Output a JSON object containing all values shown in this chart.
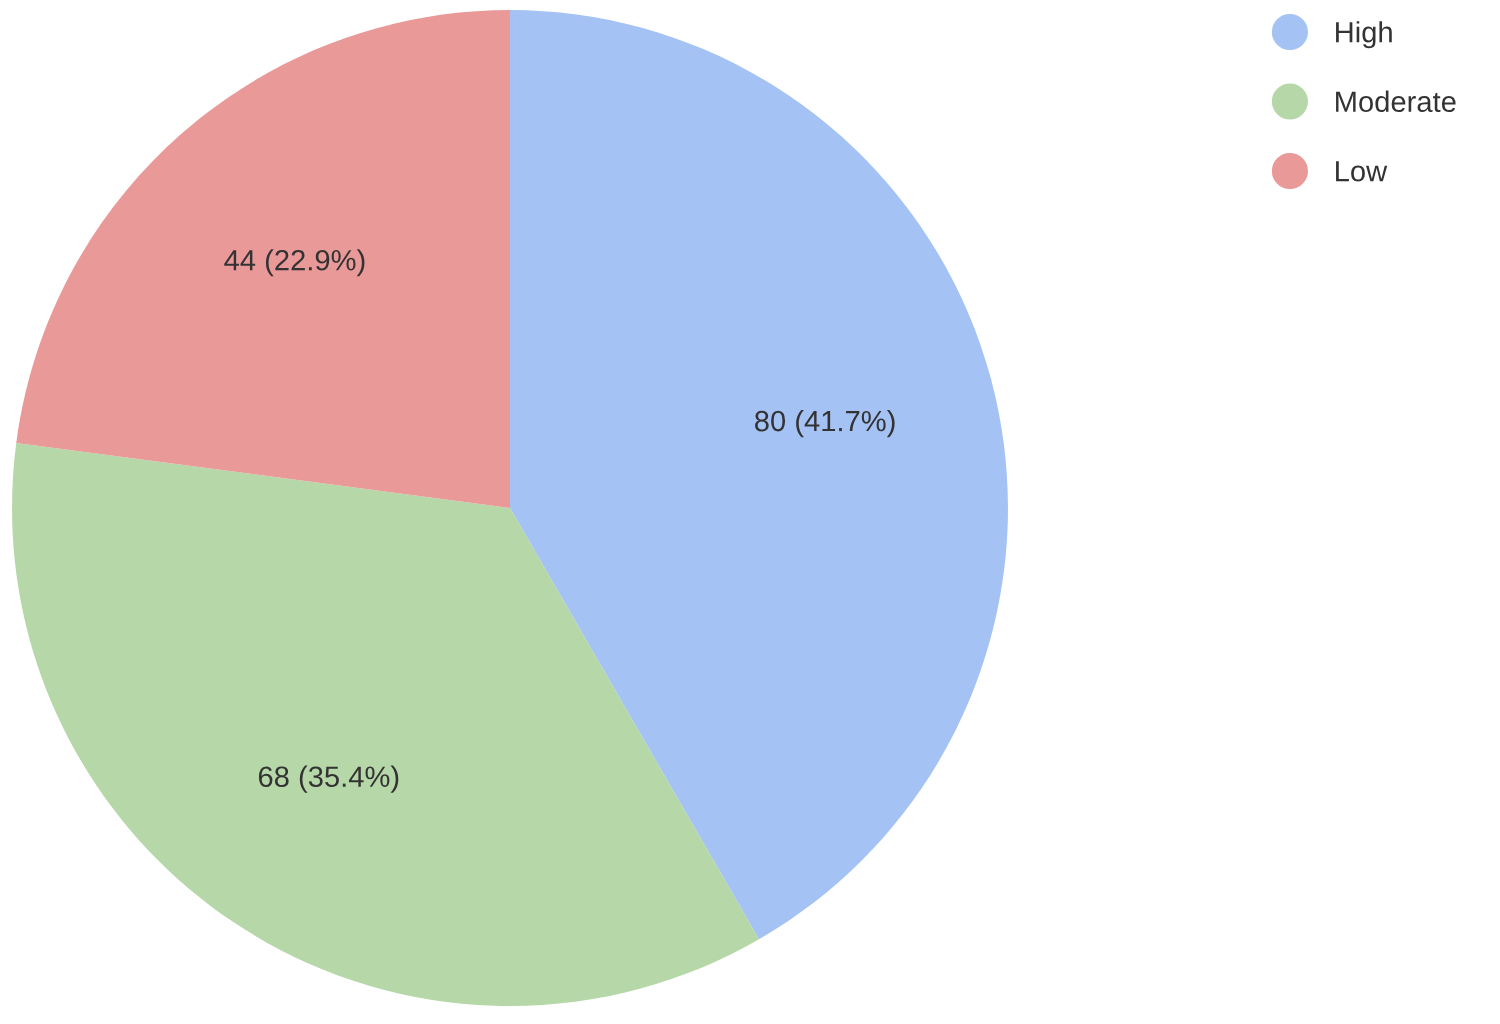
{
  "chart_data": {
    "type": "pie",
    "categories": [
      "High",
      "Moderate",
      "Low"
    ],
    "values": [
      80,
      68,
      44
    ],
    "colors": [
      "#a4c2f4",
      "#b6d7a8",
      "#ea9999"
    ],
    "value_labels": [
      "80 (41.7%)",
      "68 (35.4%)",
      "44 (22.9%)"
    ],
    "legend": "top right"
  }
}
